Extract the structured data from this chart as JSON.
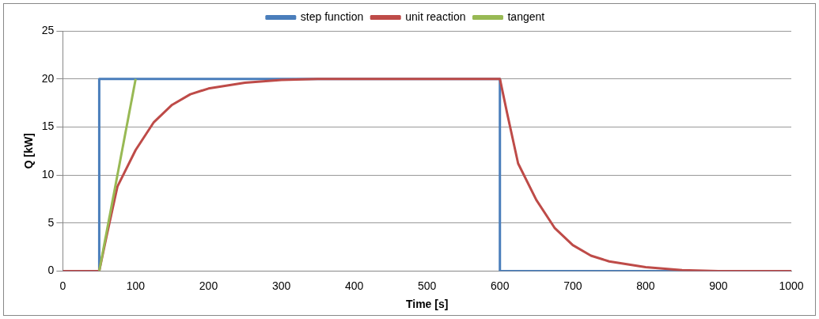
{
  "chart_data": {
    "type": "line",
    "xlabel": "Time [s]",
    "ylabel": "Q [kW]",
    "xlim": [
      0,
      1000
    ],
    "xticks": [
      0,
      100,
      200,
      300,
      400,
      500,
      600,
      700,
      800,
      900,
      1000
    ],
    "ylim": [
      0,
      25
    ],
    "yticks": [
      0,
      5,
      10,
      15,
      20,
      25
    ],
    "grid": "y",
    "legend": "top",
    "marker": "none",
    "line_style": "solid",
    "series": [
      {
        "name": "step function",
        "color": "#4a7ebb",
        "x": [
          0,
          50,
          50,
          600,
          600,
          1000
        ],
        "values": [
          0,
          0,
          20,
          20,
          0,
          0
        ]
      },
      {
        "name": "unit reaction",
        "color": "#be4b48",
        "x": [
          0,
          50,
          60,
          75,
          100,
          125,
          150,
          175,
          200,
          250,
          300,
          350,
          400,
          500,
          600,
          610,
          625,
          650,
          675,
          700,
          725,
          750,
          800,
          850,
          900,
          1000
        ],
        "values": [
          0,
          0,
          3.6,
          8.8,
          12.6,
          15.5,
          17.3,
          18.4,
          19.0,
          19.6,
          19.9,
          20,
          20,
          20,
          20,
          16.4,
          11.2,
          7.4,
          4.5,
          2.7,
          1.6,
          1.0,
          0.4,
          0.1,
          0,
          0
        ]
      },
      {
        "name": "tangent",
        "color": "#98b954",
        "x": [
          50,
          100
        ],
        "values": [
          0,
          20
        ]
      }
    ]
  }
}
